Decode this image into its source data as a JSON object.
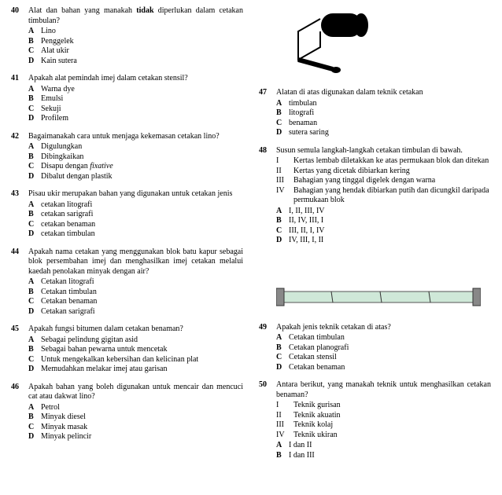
{
  "left": [
    {
      "num": "40",
      "text": "Alat dan bahan yang manakah <b>tidak</b> diperlukan dalam cetakan timbulan?",
      "opts": [
        [
          "A",
          "Lino"
        ],
        [
          "B",
          "Penggelek"
        ],
        [
          "C",
          "Alat ukir"
        ],
        [
          "D",
          "Kain sutera"
        ]
      ]
    },
    {
      "num": "41",
      "text": "Apakah alat pemindah imej dalam cetakan stensil?",
      "opts": [
        [
          "A",
          "Warna dye"
        ],
        [
          "B",
          "Emulsi"
        ],
        [
          "C",
          "Sekuji"
        ],
        [
          "D",
          "Profilem"
        ]
      ]
    },
    {
      "num": "42",
      "text": "Bagaimanakah cara untuk menjaga kekemasan cetakan lino?",
      "opts": [
        [
          "A",
          "Digulungkan"
        ],
        [
          "B",
          "Dibingkaikan"
        ],
        [
          "C",
          "Disapu dengan <i>fixative</i>"
        ],
        [
          "D",
          "Dibalut dengan plastik"
        ]
      ]
    },
    {
      "num": "43",
      "text": "Pisau ukir merupakan bahan yang digunakan untuk cetakan jenis",
      "opts": [
        [
          "A",
          "cetakan litografi"
        ],
        [
          "B",
          "cetakan sarigrafi"
        ],
        [
          "C",
          "cetakan benaman"
        ],
        [
          "D",
          "cetakan timbulan"
        ]
      ]
    },
    {
      "num": "44",
      "text": "Apakah nama cetakan yang menggunakan blok batu kapur sebagai blok persembahan imej dan menghasilkan imej cetakan melalui kaedah penolakan minyak dengan air?",
      "opts": [
        [
          "A",
          "Cetakan litografi"
        ],
        [
          "B",
          "Cetakan timbulan"
        ],
        [
          "C",
          "Cetakan benaman"
        ],
        [
          "D",
          "Cetakan sarigrafi"
        ]
      ]
    },
    {
      "num": "45",
      "text": "Apakah fungsi bitumen dalam cetakan benaman?",
      "opts": [
        [
          "A",
          "Sebagai pelindung gigitan asid"
        ],
        [
          "B",
          "Sebagai bahan pewarna untuk mencetak"
        ],
        [
          "C",
          "Untuk mengekalkan kebersihan dan kelicinan plat"
        ],
        [
          "D",
          "Memudahkan melakar imej atau garisan"
        ]
      ]
    },
    {
      "num": "46",
      "text": "Apakah bahan yang boleh digunakan untuk mencair dan mencuci cat atau dakwat lino?",
      "opts": [
        [
          "A",
          "Petrol"
        ],
        [
          "B",
          "Minyak diesel"
        ],
        [
          "C",
          "Minyak masak"
        ],
        [
          "D",
          "Minyak pelincir"
        ]
      ]
    }
  ],
  "right": [
    {
      "num": "47",
      "image": "roller",
      "text": "Alatan di atas digunakan dalam teknik cetakan",
      "opts": [
        [
          "A",
          "timbulan"
        ],
        [
          "B",
          "litografi"
        ],
        [
          "C",
          "benaman"
        ],
        [
          "D",
          "sutera saring"
        ]
      ]
    },
    {
      "num": "48",
      "text": "Susun semula langkah-langkah cetakan timbulan di bawah.",
      "romans": [
        [
          "I",
          "Kertas lembab diletakkan ke atas permukaan blok dan ditekan"
        ],
        [
          "II",
          "Kertas yang dicetak dibiarkan kering"
        ],
        [
          "III",
          "Bahagian yang tinggal digelek dengan warna"
        ],
        [
          "IV",
          "Bahagian yang hendak dibiarkan putih dan dicungkil daripada permukaan blok"
        ]
      ],
      "opts": [
        [
          "A",
          "I, II, III, IV"
        ],
        [
          "B",
          "II, IV, III, I"
        ],
        [
          "C",
          "III, II, I, IV"
        ],
        [
          "D",
          "IV, III, I, II"
        ]
      ]
    },
    {
      "num": "49",
      "image": "plate",
      "text": "Apakah jenis teknik cetakan di atas?",
      "opts": [
        [
          "A",
          "Cetakan timbulan"
        ],
        [
          "B",
          "Cetakan planografi"
        ],
        [
          "C",
          "Cetakan stensil"
        ],
        [
          "D",
          "Cetakan benaman"
        ]
      ]
    },
    {
      "num": "50",
      "text": "Antara berikut, yang manakah teknik untuk menghasilkan cetakan benaman?",
      "romans": [
        [
          "I",
          "Teknik gurisan"
        ],
        [
          "II",
          "Teknik akuatin"
        ],
        [
          "III",
          "Teknik kolaj"
        ],
        [
          "IV",
          "Teknik ukiran"
        ]
      ],
      "opts": [
        [
          "A",
          "I dan II"
        ],
        [
          "B",
          "I dan III"
        ]
      ]
    }
  ]
}
